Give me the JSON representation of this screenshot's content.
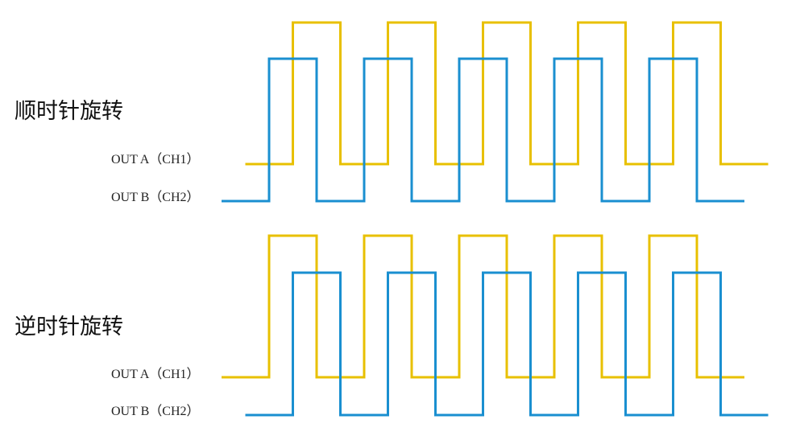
{
  "colors": {
    "channel_a": "#e8c000",
    "channel_b": "#1a8fd0"
  },
  "time_unit": "quarter period",
  "panels": [
    {
      "title": "顺时针旋转",
      "signals": [
        {
          "label": "OUT A（CH1）",
          "channel": "a",
          "start": 1,
          "levels": [
            0,
            1,
            0,
            1,
            0,
            1,
            0,
            1,
            0,
            1,
            0
          ]
        },
        {
          "label": "OUT B（CH2）",
          "channel": "b",
          "start": 0,
          "levels": [
            0,
            1,
            0,
            1,
            0,
            1,
            0,
            1,
            0,
            1,
            0
          ]
        }
      ]
    },
    {
      "title": "逆时针旋转",
      "signals": [
        {
          "label": "OUT A（CH1）",
          "channel": "a",
          "start": 0,
          "levels": [
            0,
            1,
            0,
            1,
            0,
            1,
            0,
            1,
            0,
            1,
            0
          ]
        },
        {
          "label": "OUT B（CH2）",
          "channel": "b",
          "start": 1,
          "levels": [
            0,
            1,
            0,
            1,
            0,
            1,
            0,
            1,
            0,
            1,
            0
          ]
        }
      ]
    }
  ]
}
